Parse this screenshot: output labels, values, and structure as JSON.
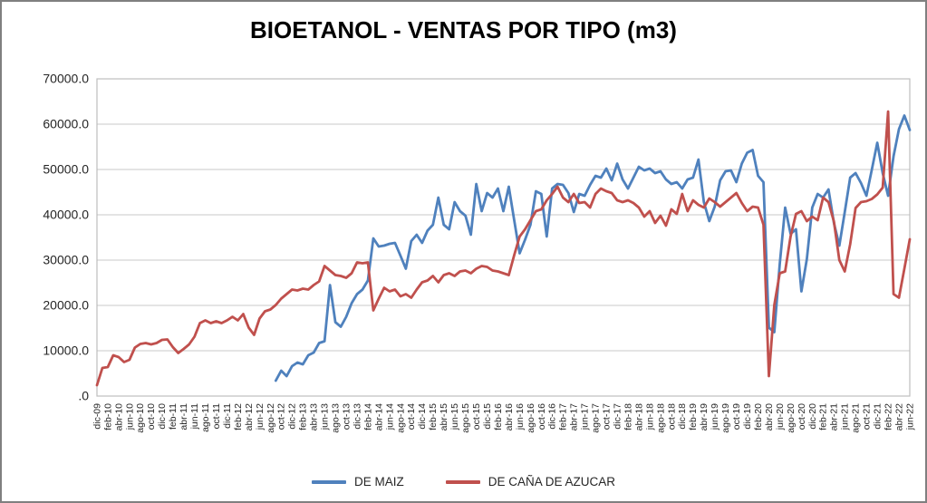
{
  "window": {
    "title": "BIOETANOL - VENTAS POR TIPO (m3)"
  },
  "chart_data": {
    "type": "line",
    "title": "BIOETANOL - VENTAS POR TIPO (m3)",
    "xlabel": "",
    "ylabel": "",
    "ylim": [
      0,
      70000
    ],
    "y_tick_interval": 10000,
    "y_tick_labels": [
      "70000.0",
      "60000.0",
      "50000.0",
      "40000.0",
      "30000.0",
      "20000.0",
      "10000.0",
      ".0"
    ],
    "x_tick_every": 2,
    "grid": "horizontal",
    "legend_position": "bottom",
    "categories": [
      "dic-09",
      "ene-10",
      "feb-10",
      "mar-10",
      "abr-10",
      "may-10",
      "jun-10",
      "jul-10",
      "ago-10",
      "sep-10",
      "oct-10",
      "nov-10",
      "dic-10",
      "ene-11",
      "feb-11",
      "mar-11",
      "abr-11",
      "may-11",
      "jun-11",
      "jul-11",
      "ago-11",
      "sep-11",
      "oct-11",
      "nov-11",
      "dic-11",
      "ene-12",
      "feb-12",
      "mar-12",
      "abr-12",
      "may-12",
      "jun-12",
      "jul-12",
      "ago-12",
      "sep-12",
      "oct-12",
      "nov-12",
      "dic-12",
      "ene-13",
      "feb-13",
      "mar-13",
      "abr-13",
      "may-13",
      "jun-13",
      "jul-13",
      "ago-13",
      "sep-13",
      "oct-13",
      "nov-13",
      "dic-13",
      "ene-14",
      "feb-14",
      "mar-14",
      "abr-14",
      "may-14",
      "jun-14",
      "jul-14",
      "ago-14",
      "sep-14",
      "oct-14",
      "nov-14",
      "dic-14",
      "ene-15",
      "feb-15",
      "mar-15",
      "abr-15",
      "may-15",
      "jun-15",
      "jul-15",
      "ago-15",
      "sep-15",
      "oct-15",
      "nov-15",
      "dic-15",
      "ene-16",
      "feb-16",
      "mar-16",
      "abr-16",
      "may-16",
      "jun-16",
      "jul-16",
      "ago-16",
      "sep-16",
      "oct-16",
      "nov-16",
      "dic-16",
      "ene-17",
      "feb-17",
      "mar-17",
      "abr-17",
      "may-17",
      "jun-17",
      "jul-17",
      "ago-17",
      "sep-17",
      "oct-17",
      "nov-17",
      "dic-17",
      "ene-18",
      "feb-18",
      "mar-18",
      "abr-18",
      "may-18",
      "jun-18",
      "jul-18",
      "ago-18",
      "sep-18",
      "oct-18",
      "nov-18",
      "dic-18",
      "ene-19",
      "feb-19",
      "mar-19",
      "abr-19",
      "may-19",
      "jun-19",
      "jul-19",
      "ago-19",
      "sep-19",
      "oct-19",
      "nov-19",
      "dic-19",
      "ene-20",
      "feb-20",
      "mar-20",
      "abr-20",
      "may-20",
      "jun-20",
      "jul-20",
      "ago-20",
      "sep-20",
      "oct-20",
      "nov-20",
      "dic-20",
      "ene-21",
      "feb-21",
      "mar-21",
      "abr-21",
      "may-21",
      "jun-21",
      "jul-21",
      "ago-21",
      "sep-21",
      "oct-21",
      "nov-21",
      "dic-21",
      "ene-22",
      "feb-22",
      "mar-22",
      "abr-22",
      "may-22",
      "jun-22"
    ],
    "series": [
      {
        "name": "DE MAIZ",
        "color": "#4F81BD",
        "values": [
          null,
          null,
          null,
          null,
          null,
          null,
          null,
          null,
          null,
          null,
          null,
          null,
          null,
          null,
          null,
          null,
          null,
          null,
          null,
          null,
          null,
          null,
          null,
          null,
          null,
          null,
          null,
          null,
          null,
          null,
          null,
          null,
          null,
          3400,
          5600,
          4400,
          6600,
          7400,
          7000,
          9000,
          9600,
          11700,
          12100,
          24500,
          16300,
          15300,
          17500,
          20500,
          22500,
          23500,
          25500,
          34800,
          33000,
          33200,
          33600,
          33800,
          31000,
          28100,
          34200,
          35600,
          33800,
          36500,
          37800,
          43800,
          37800,
          36800,
          42800,
          40800,
          39800,
          35600,
          46800,
          40800,
          44800,
          43800,
          45800,
          40800,
          46200,
          38800,
          31500,
          34500,
          37800,
          45200,
          44600,
          35200,
          45800,
          46800,
          46600,
          44800,
          40600,
          44600,
          44200,
          46600,
          48600,
          48200,
          50200,
          47600,
          51300,
          47800,
          45800,
          48200,
          50600,
          49800,
          50200,
          49200,
          49600,
          47800,
          46800,
          47200,
          45800,
          47800,
          48200,
          52200,
          42800,
          38600,
          41800,
          47600,
          49600,
          49800,
          47200,
          51300,
          53700,
          54300,
          48600,
          47200,
          15100,
          14100,
          29100,
          41600,
          35800,
          36800,
          23100,
          30200,
          41600,
          44600,
          43800,
          45600,
          38200,
          33200,
          40600,
          48200,
          49200,
          47000,
          44200,
          50000,
          55900,
          49200,
          44200,
          52900,
          58900,
          61900,
          58700
        ]
      },
      {
        "name": "DE CAÑA DE AZUCAR",
        "color": "#C0504D",
        "values": [
          2400,
          6200,
          6400,
          9000,
          8600,
          7500,
          8000,
          10700,
          11500,
          11700,
          11400,
          11700,
          12400,
          12500,
          10800,
          9500,
          10400,
          11400,
          13100,
          16100,
          16700,
          16100,
          16500,
          16100,
          16700,
          17500,
          16700,
          18100,
          15100,
          13500,
          17100,
          18700,
          19100,
          20100,
          21500,
          22500,
          23500,
          23300,
          23700,
          23500,
          24500,
          25300,
          28700,
          27700,
          26700,
          26500,
          26100,
          27100,
          29500,
          29300,
          29500,
          18900,
          21500,
          23900,
          23100,
          23500,
          22000,
          22500,
          21700,
          23500,
          25100,
          25500,
          26500,
          25100,
          26700,
          27100,
          26500,
          27500,
          27700,
          27100,
          28100,
          28700,
          28500,
          27700,
          27500,
          27100,
          26700,
          31100,
          35200,
          36800,
          38800,
          40800,
          41200,
          43200,
          44600,
          46200,
          43800,
          42800,
          44600,
          42600,
          42800,
          41600,
          44600,
          45800,
          45200,
          44800,
          43200,
          42800,
          43200,
          42600,
          41600,
          39600,
          40800,
          38200,
          39800,
          37600,
          41200,
          40200,
          44600,
          40800,
          43200,
          42200,
          41600,
          43600,
          42800,
          41800,
          42800,
          43800,
          44800,
          42600,
          40800,
          41800,
          41600,
          37800,
          4400,
          20100,
          27100,
          27500,
          35200,
          40200,
          40800,
          38600,
          39600,
          38800,
          43800,
          42800,
          38500,
          30000,
          27500,
          33500,
          41500,
          42800,
          43000,
          43500,
          44500,
          46000,
          62800,
          22500,
          21700,
          28100,
          34600
        ]
      }
    ],
    "plot_style": {
      "gridline_color": "#c9c9c9",
      "border_color": "#bdbdbd",
      "tick_label_color": "#262626",
      "line_width": 2.8
    }
  },
  "legend": {
    "items": [
      {
        "label": "DE MAIZ",
        "color": "#4F81BD"
      },
      {
        "label": "DE CAÑA DE AZUCAR",
        "color": "#C0504D"
      }
    ]
  }
}
